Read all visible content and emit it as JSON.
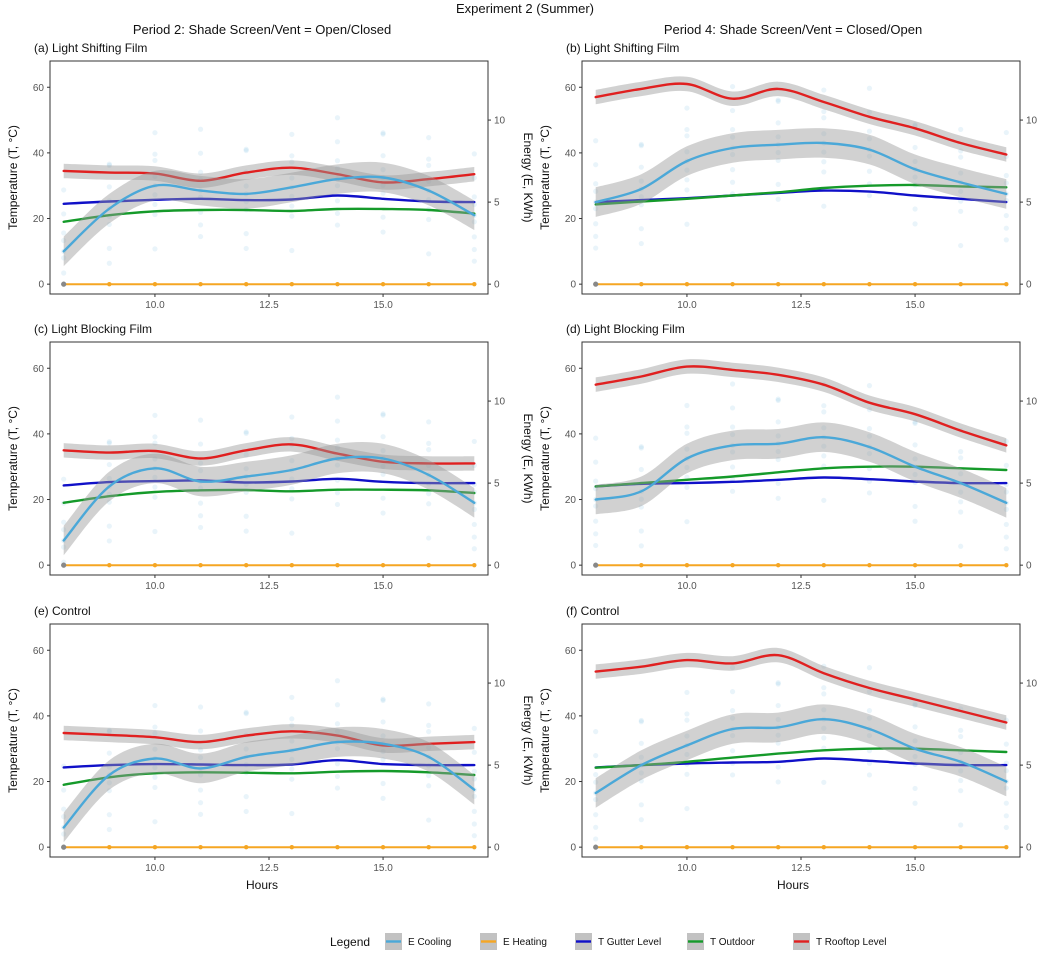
{
  "figure": {
    "title": "Experiment 2 (Summer)",
    "columns": [
      "Period 2: Shade Screen/Vent = Open/Closed",
      "Period 4: Shade Screen/Vent = Closed/Open"
    ],
    "x_label": "Hours",
    "y_left_label": "Temperature (T, °C)",
    "y_right_label": "Energy (E, KWh)"
  },
  "legend": {
    "title": "Legend",
    "items": [
      {
        "label": "E Cooling",
        "color": "#4ba8d8"
      },
      {
        "label": "E Heating",
        "color": "#f5a623"
      },
      {
        "label": "T Gutter Level",
        "color": "#1010c8"
      },
      {
        "label": "T Outdoor",
        "color": "#159a2a"
      },
      {
        "label": "T Rooftop Level",
        "color": "#e02020"
      }
    ]
  },
  "chart_data": [
    {
      "type": "line",
      "title": "(a) Light Shifting Film",
      "xlabel": "Hours",
      "ylabel": "Temperature (T, °C)",
      "y2label": "Energy (E, KWh)",
      "xlim": [
        7.7,
        17.3
      ],
      "ylim": [
        -3,
        68
      ],
      "y2lim": [
        -0.6,
        13.6
      ],
      "x_ticks": [
        10.0,
        12.5,
        15.0
      ],
      "y_ticks": [
        0,
        20,
        40,
        60
      ],
      "y2_ticks": [
        0,
        5,
        10
      ],
      "x": [
        8,
        9,
        10,
        11,
        12,
        13,
        14,
        15,
        16,
        17
      ],
      "series": [
        {
          "name": "T Rooftop Level",
          "values": [
            34.5,
            34.0,
            33.7,
            31.5,
            34.0,
            35.5,
            33.5,
            31.0,
            32.0,
            33.5
          ]
        },
        {
          "name": "T Gutter Level",
          "values": [
            24.5,
            25.2,
            25.7,
            26.0,
            25.6,
            25.8,
            27.0,
            26.0,
            25.2,
            25.0
          ]
        },
        {
          "name": "T Outdoor",
          "values": [
            19.0,
            21.0,
            22.2,
            22.6,
            22.6,
            22.3,
            22.9,
            22.9,
            22.6,
            21.5
          ]
        },
        {
          "name": "E Cooling",
          "values": [
            2.0,
            4.6,
            6.0,
            5.7,
            5.5,
            5.9,
            6.4,
            6.5,
            5.7,
            4.2
          ]
        },
        {
          "name": "E Heating",
          "values": [
            0,
            0,
            0,
            0,
            0,
            0,
            0,
            0,
            0,
            0
          ]
        }
      ]
    },
    {
      "type": "line",
      "title": "(b) Light Shifting Film",
      "xlabel": "Hours",
      "ylabel": "Temperature (T, °C)",
      "y2label": "Energy (E, KWh)",
      "xlim": [
        7.7,
        17.3
      ],
      "ylim": [
        -3,
        68
      ],
      "y2lim": [
        -0.6,
        13.6
      ],
      "x_ticks": [
        10.0,
        12.5,
        15.0
      ],
      "y_ticks": [
        0,
        20,
        40,
        60
      ],
      "y2_ticks": [
        0,
        5,
        10
      ],
      "x": [
        8,
        9,
        10,
        11,
        12,
        13,
        14,
        15,
        16,
        17
      ],
      "series": [
        {
          "name": "T Rooftop Level",
          "values": [
            57.0,
            59.5,
            61.0,
            56.5,
            59.5,
            55.5,
            51.0,
            47.5,
            43.0,
            39.5
          ]
        },
        {
          "name": "T Gutter Level",
          "values": [
            25.0,
            25.6,
            26.2,
            27.0,
            27.8,
            28.5,
            28.2,
            27.0,
            26.0,
            25.0
          ]
        },
        {
          "name": "T Outdoor",
          "values": [
            24.3,
            25.2,
            26.0,
            27.0,
            28.0,
            29.3,
            30.0,
            30.2,
            29.8,
            29.5
          ]
        },
        {
          "name": "E Cooling",
          "values": [
            5.0,
            5.8,
            7.5,
            8.3,
            8.5,
            8.6,
            8.2,
            7.0,
            6.2,
            5.5
          ]
        },
        {
          "name": "E Heating",
          "values": [
            0,
            0,
            0,
            0,
            0,
            0,
            0,
            0,
            0,
            0
          ]
        }
      ]
    },
    {
      "type": "line",
      "title": "(c) Light Blocking Film",
      "xlabel": "Hours",
      "ylabel": "Temperature (T, °C)",
      "y2label": "Energy (E, KWh)",
      "xlim": [
        7.7,
        17.3
      ],
      "ylim": [
        -3,
        68
      ],
      "y2lim": [
        -0.6,
        13.6
      ],
      "x_ticks": [
        10.0,
        12.5,
        15.0
      ],
      "y_ticks": [
        0,
        20,
        40,
        60
      ],
      "y2_ticks": [
        0,
        5,
        10
      ],
      "x": [
        8,
        9,
        10,
        11,
        12,
        13,
        14,
        15,
        16,
        17
      ],
      "series": [
        {
          "name": "T Rooftop Level",
          "values": [
            35.0,
            34.3,
            34.8,
            32.5,
            35.0,
            36.8,
            34.0,
            31.5,
            31.0,
            31.0
          ]
        },
        {
          "name": "T Gutter Level",
          "values": [
            24.3,
            25.3,
            25.6,
            25.8,
            25.2,
            25.5,
            26.3,
            25.4,
            25.0,
            25.0
          ]
        },
        {
          "name": "T Outdoor",
          "values": [
            19.0,
            21.0,
            22.3,
            22.8,
            22.9,
            22.5,
            23.0,
            23.0,
            22.8,
            22.0
          ]
        },
        {
          "name": "E Cooling",
          "values": [
            1.5,
            4.8,
            5.9,
            5.1,
            5.4,
            5.8,
            6.5,
            6.5,
            5.5,
            3.8
          ]
        },
        {
          "name": "E Heating",
          "values": [
            0,
            0,
            0,
            0,
            0,
            0,
            0,
            0,
            0,
            0
          ]
        }
      ]
    },
    {
      "type": "line",
      "title": "(d) Light Blocking Film",
      "xlabel": "Hours",
      "ylabel": "Temperature (T, °C)",
      "y2label": "Energy (E, KWh)",
      "xlim": [
        7.7,
        17.3
      ],
      "ylim": [
        -3,
        68
      ],
      "y2lim": [
        -0.6,
        13.6
      ],
      "x_ticks": [
        10.0,
        12.5,
        15.0
      ],
      "y_ticks": [
        0,
        20,
        40,
        60
      ],
      "y2_ticks": [
        0,
        5,
        10
      ],
      "x": [
        8,
        9,
        10,
        11,
        12,
        13,
        14,
        15,
        16,
        17
      ],
      "series": [
        {
          "name": "T Rooftop Level",
          "values": [
            55.0,
            57.5,
            60.5,
            59.5,
            58.0,
            55.0,
            49.5,
            46.0,
            41.0,
            36.5
          ]
        },
        {
          "name": "T Gutter Level",
          "values": [
            24.0,
            24.8,
            25.0,
            25.4,
            26.0,
            26.7,
            26.2,
            25.5,
            25.0,
            25.0
          ]
        },
        {
          "name": "T Outdoor",
          "values": [
            24.0,
            25.0,
            26.0,
            27.0,
            28.3,
            29.5,
            30.0,
            30.0,
            29.5,
            29.0
          ]
        },
        {
          "name": "E Cooling",
          "values": [
            4.0,
            4.5,
            6.5,
            7.3,
            7.4,
            7.8,
            7.2,
            6.0,
            5.0,
            3.8
          ]
        },
        {
          "name": "E Heating",
          "values": [
            0,
            0,
            0,
            0,
            0,
            0,
            0,
            0,
            0,
            0
          ]
        }
      ]
    },
    {
      "type": "line",
      "title": "(e) Control",
      "xlabel": "Hours",
      "ylabel": "Temperature (T, °C)",
      "y2label": "Energy (E, KWh)",
      "xlim": [
        7.7,
        17.3
      ],
      "ylim": [
        -3,
        68
      ],
      "y2lim": [
        -0.6,
        13.6
      ],
      "x_ticks": [
        10.0,
        12.5,
        15.0
      ],
      "y_ticks": [
        0,
        20,
        40,
        60
      ],
      "y2_ticks": [
        0,
        5,
        10
      ],
      "x": [
        8,
        9,
        10,
        11,
        12,
        13,
        14,
        15,
        16,
        17
      ],
      "series": [
        {
          "name": "T Rooftop Level",
          "values": [
            34.8,
            34.2,
            33.5,
            32.0,
            34.0,
            35.3,
            34.0,
            31.0,
            31.5,
            32.0
          ]
        },
        {
          "name": "T Gutter Level",
          "values": [
            24.3,
            25.0,
            25.3,
            25.2,
            25.0,
            25.2,
            26.5,
            25.3,
            25.0,
            25.0
          ]
        },
        {
          "name": "T Outdoor",
          "values": [
            19.0,
            21.3,
            22.5,
            22.8,
            22.7,
            22.5,
            23.0,
            23.2,
            22.8,
            22.0
          ]
        },
        {
          "name": "E Cooling",
          "values": [
            1.2,
            4.4,
            5.4,
            4.8,
            5.5,
            5.9,
            6.4,
            6.3,
            5.5,
            3.5
          ]
        },
        {
          "name": "E Heating",
          "values": [
            0,
            0,
            0,
            0,
            0,
            0,
            0,
            0,
            0,
            0
          ]
        }
      ]
    },
    {
      "type": "line",
      "title": "(f) Control",
      "xlabel": "Hours",
      "ylabel": "Temperature (T, °C)",
      "y2label": "Energy (E, KWh)",
      "xlim": [
        7.7,
        17.3
      ],
      "ylim": [
        -3,
        68
      ],
      "y2lim": [
        -0.6,
        13.6
      ],
      "x_ticks": [
        10.0,
        12.5,
        15.0
      ],
      "y_ticks": [
        0,
        20,
        40,
        60
      ],
      "y2_ticks": [
        0,
        5,
        10
      ],
      "x": [
        8,
        9,
        10,
        11,
        12,
        13,
        14,
        15,
        16,
        17
      ],
      "series": [
        {
          "name": "T Rooftop Level",
          "values": [
            53.5,
            55.0,
            57.0,
            56.0,
            58.5,
            53.0,
            48.5,
            45.0,
            41.5,
            38.0
          ]
        },
        {
          "name": "T Gutter Level",
          "values": [
            24.3,
            25.0,
            25.5,
            25.8,
            26.0,
            27.0,
            26.3,
            25.5,
            25.0,
            25.0
          ]
        },
        {
          "name": "T Outdoor",
          "values": [
            24.2,
            25.0,
            26.0,
            27.3,
            28.5,
            29.5,
            30.0,
            30.0,
            29.5,
            29.0
          ]
        },
        {
          "name": "E Cooling",
          "values": [
            3.3,
            5.0,
            6.2,
            7.2,
            7.3,
            7.8,
            7.2,
            6.0,
            5.2,
            4.0
          ]
        },
        {
          "name": "E Heating",
          "values": [
            0,
            0,
            0,
            0,
            0,
            0,
            0,
            0,
            0,
            0
          ]
        }
      ]
    }
  ]
}
